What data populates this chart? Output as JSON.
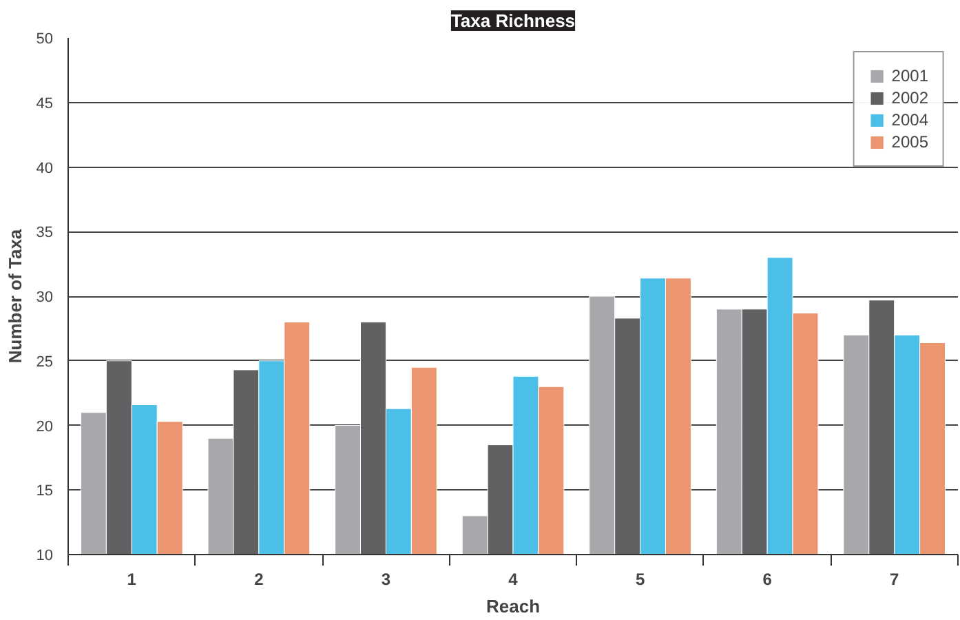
{
  "chart_data": {
    "type": "bar",
    "title": "Taxa Richness",
    "xlabel": "Reach",
    "ylabel": "Number of Taxa",
    "categories": [
      "1",
      "2",
      "3",
      "4",
      "5",
      "6",
      "7"
    ],
    "series": [
      {
        "name": "2001",
        "color": "#a7a8ab",
        "values": [
          21,
          19,
          20,
          13,
          30,
          29,
          27
        ]
      },
      {
        "name": "2002",
        "color": "#616163",
        "values": [
          25,
          24.3,
          28,
          18.5,
          28.3,
          29,
          29.7
        ]
      },
      {
        "name": "2004",
        "color": "#4bbfe8",
        "values": [
          21.6,
          25,
          21.3,
          23.8,
          31.4,
          33,
          27
        ]
      },
      {
        "name": "2005",
        "color": "#eb9670",
        "values": [
          20.3,
          28,
          24.5,
          23,
          31.4,
          28.7,
          26.4
        ]
      }
    ],
    "ylim": [
      10,
      50
    ],
    "yticks": [
      10,
      15,
      20,
      25,
      30,
      35,
      40,
      45,
      50
    ],
    "grid": "y",
    "legend": "top right"
  }
}
